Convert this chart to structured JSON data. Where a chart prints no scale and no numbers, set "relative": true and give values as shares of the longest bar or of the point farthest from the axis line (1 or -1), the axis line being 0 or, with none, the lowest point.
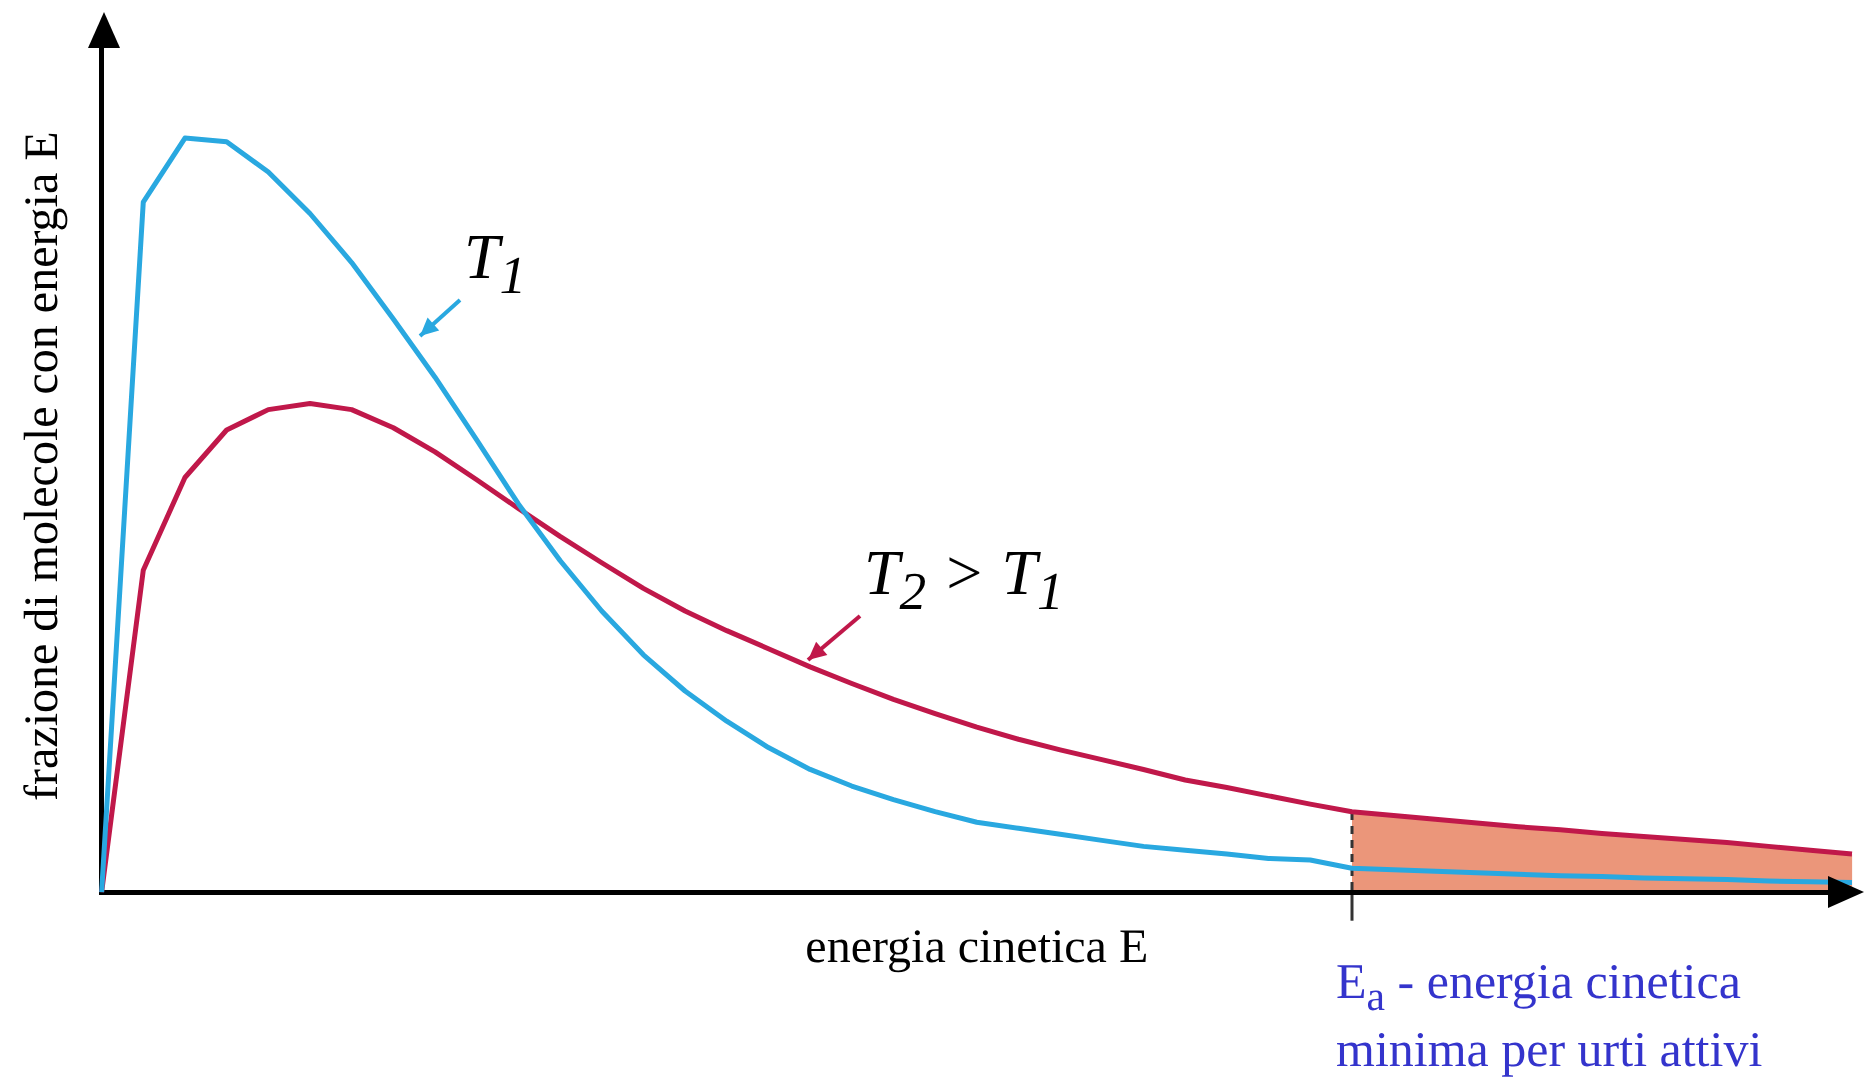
{
  "chart_data": {
    "type": "line",
    "relative": true,
    "xlabel": "energia cinetica E",
    "ylabel": "frazione di molecole con energia E",
    "marker": "none",
    "legend": false,
    "grid": false,
    "categories": [
      null,
      null,
      null,
      null,
      null,
      null,
      null,
      null,
      null,
      null,
      null,
      null,
      null,
      null,
      null,
      null,
      null,
      null,
      null,
      null,
      null,
      null,
      null,
      null,
      null,
      null,
      null,
      null,
      null,
      null,
      null,
      null,
      null,
      null,
      null,
      null,
      null,
      null,
      null,
      null,
      null,
      null,
      null
    ],
    "series": [
      {
        "name": "T$_{1}$",
        "color": "#29a8e0",
        "values": [
          0,
          0.915,
          1,
          0.995,
          0.955,
          0.9,
          0.835,
          0.76,
          0.683,
          0.6,
          0.515,
          0.44,
          0.373,
          0.315,
          0.267,
          0.227,
          0.192,
          0.163,
          0.141,
          0.123,
          0.107,
          0.093,
          0.085,
          0.077,
          0.069,
          0.061,
          0.056,
          0.051,
          0.045,
          0.043,
          0.032,
          0.03,
          0.028,
          0.026,
          0.024,
          0.022,
          0.021,
          0.019,
          0.018,
          0.017,
          0.015,
          0.014,
          0.013
        ]
      },
      {
        "name": "T$_{2}$ > T$_{1}$",
        "color": "#c0184a",
        "values": [
          0,
          0.427,
          0.55,
          0.613,
          0.64,
          0.648,
          0.64,
          0.616,
          0.584,
          0.547,
          0.509,
          0.472,
          0.437,
          0.403,
          0.373,
          0.347,
          0.323,
          0.299,
          0.277,
          0.256,
          0.237,
          0.219,
          0.203,
          0.189,
          0.176,
          0.163,
          0.149,
          0.139,
          0.128,
          0.117,
          0.107,
          0.102,
          0.097,
          0.092,
          0.087,
          0.083,
          0.078,
          0.074,
          0.07,
          0.066,
          0.061,
          0.056,
          0.051
        ]
      }
    ],
    "annotations": [
      "E$_{a}$ - energia cinetica minima per urti attivi"
    ]
  }
}
